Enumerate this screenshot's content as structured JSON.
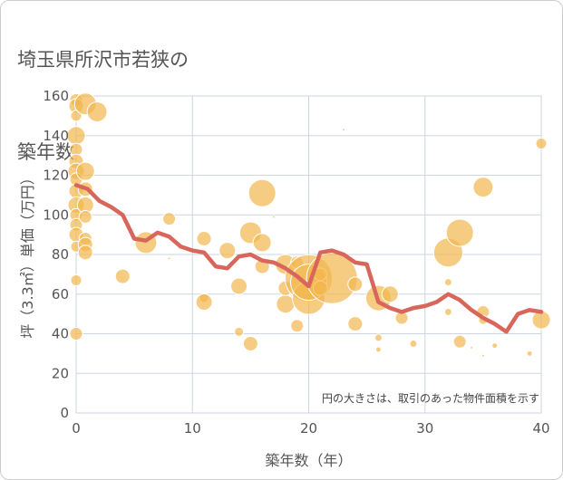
{
  "chart_data": {
    "type": "scatter",
    "title_lines": [
      "埼玉県所沢市若狭の",
      "築年数別中古戸建て価格"
    ],
    "xlabel": "築年数（年）",
    "ylabel": "坪（3.3㎡）単価（万円）",
    "xlim": [
      0,
      40
    ],
    "ylim": [
      0,
      160
    ],
    "xticks": [
      0,
      10,
      20,
      30,
      40
    ],
    "yticks": [
      0,
      20,
      40,
      60,
      80,
      100,
      120,
      140,
      160
    ],
    "grid": true,
    "annotation": "円の大きさは、取引のあった物件面積を示す",
    "colors": {
      "bubble": "#f2b64d",
      "line": "#d9665a",
      "grid": "#cdd6e0"
    },
    "bubbles": [
      {
        "x": 0,
        "y": 158,
        "r": 7
      },
      {
        "x": 0,
        "y": 155,
        "r": 8
      },
      {
        "x": 0,
        "y": 150,
        "r": 6
      },
      {
        "x": 0,
        "y": 140,
        "r": 10
      },
      {
        "x": 0,
        "y": 133,
        "r": 7
      },
      {
        "x": 0,
        "y": 127,
        "r": 8
      },
      {
        "x": 0,
        "y": 122,
        "r": 9
      },
      {
        "x": 0,
        "y": 118,
        "r": 7
      },
      {
        "x": 0,
        "y": 112,
        "r": 8
      },
      {
        "x": 0,
        "y": 105,
        "r": 9
      },
      {
        "x": 0,
        "y": 100,
        "r": 7
      },
      {
        "x": 0,
        "y": 95,
        "r": 7
      },
      {
        "x": 0,
        "y": 90,
        "r": 8
      },
      {
        "x": 0,
        "y": 84,
        "r": 6
      },
      {
        "x": 0,
        "y": 67,
        "r": 6
      },
      {
        "x": 0,
        "y": 40,
        "r": 7
      },
      {
        "x": 0.8,
        "y": 156,
        "r": 12
      },
      {
        "x": 0.8,
        "y": 122,
        "r": 10
      },
      {
        "x": 0.8,
        "y": 113,
        "r": 8
      },
      {
        "x": 0.8,
        "y": 105,
        "r": 9
      },
      {
        "x": 0.8,
        "y": 99,
        "r": 7
      },
      {
        "x": 0.8,
        "y": 88,
        "r": 7
      },
      {
        "x": 0.8,
        "y": 85,
        "r": 8
      },
      {
        "x": 0.8,
        "y": 81,
        "r": 8
      },
      {
        "x": 1.8,
        "y": 152,
        "r": 11
      },
      {
        "x": 4,
        "y": 69,
        "r": 8
      },
      {
        "x": 6,
        "y": 86,
        "r": 12
      },
      {
        "x": 8,
        "y": 98,
        "r": 7
      },
      {
        "x": 8,
        "y": 78,
        "r": 1.5
      },
      {
        "x": 11,
        "y": 88,
        "r": 8
      },
      {
        "x": 11,
        "y": 58,
        "r": 5
      },
      {
        "x": 11,
        "y": 56,
        "r": 9
      },
      {
        "x": 13,
        "y": 82,
        "r": 9
      },
      {
        "x": 14,
        "y": 64,
        "r": 9
      },
      {
        "x": 14,
        "y": 41,
        "r": 5
      },
      {
        "x": 15,
        "y": 91,
        "r": 12
      },
      {
        "x": 15,
        "y": 35,
        "r": 8
      },
      {
        "x": 16,
        "y": 111,
        "r": 15
      },
      {
        "x": 16,
        "y": 86,
        "r": 10
      },
      {
        "x": 16,
        "y": 74,
        "r": 8
      },
      {
        "x": 17,
        "y": 99,
        "r": 1.5
      },
      {
        "x": 18,
        "y": 75,
        "r": 11
      },
      {
        "x": 18,
        "y": 55,
        "r": 10
      },
      {
        "x": 18,
        "y": 63,
        "r": 8
      },
      {
        "x": 19,
        "y": 76,
        "r": 7
      },
      {
        "x": 19,
        "y": 44,
        "r": 7
      },
      {
        "x": 20,
        "y": 68,
        "r": 26
      },
      {
        "x": 20,
        "y": 58,
        "r": 18
      },
      {
        "x": 20,
        "y": 66,
        "r": 20
      },
      {
        "x": 21,
        "y": 63,
        "r": 8
      },
      {
        "x": 21,
        "y": 70,
        "r": 7
      },
      {
        "x": 22,
        "y": 68,
        "r": 28
      },
      {
        "x": 23,
        "y": 143,
        "r": 1.5
      },
      {
        "x": 24,
        "y": 65,
        "r": 8
      },
      {
        "x": 24,
        "y": 45,
        "r": 8
      },
      {
        "x": 26,
        "y": 58,
        "r": 14
      },
      {
        "x": 26,
        "y": 38,
        "r": 4
      },
      {
        "x": 26,
        "y": 32,
        "r": 3
      },
      {
        "x": 27,
        "y": 60,
        "r": 9
      },
      {
        "x": 28,
        "y": 48,
        "r": 7
      },
      {
        "x": 29,
        "y": 35,
        "r": 4
      },
      {
        "x": 32,
        "y": 81,
        "r": 16
      },
      {
        "x": 32,
        "y": 66,
        "r": 4
      },
      {
        "x": 32,
        "y": 51,
        "r": 4
      },
      {
        "x": 33,
        "y": 91,
        "r": 15
      },
      {
        "x": 33,
        "y": 36,
        "r": 7
      },
      {
        "x": 34,
        "y": 33,
        "r": 1.5
      },
      {
        "x": 35,
        "y": 114,
        "r": 11
      },
      {
        "x": 35,
        "y": 51,
        "r": 7
      },
      {
        "x": 35,
        "y": 47,
        "r": 5
      },
      {
        "x": 35,
        "y": 29,
        "r": 1.5
      },
      {
        "x": 36,
        "y": 34,
        "r": 3
      },
      {
        "x": 39,
        "y": 30,
        "r": 3
      },
      {
        "x": 40,
        "y": 136,
        "r": 6
      },
      {
        "x": 40,
        "y": 47,
        "r": 10
      }
    ],
    "trend": {
      "x": [
        0,
        1,
        2,
        3,
        4,
        5,
        6,
        7,
        8,
        9,
        10,
        11,
        12,
        13,
        14,
        15,
        16,
        17,
        18,
        19,
        20,
        21,
        22,
        23,
        24,
        25,
        26,
        27,
        28,
        29,
        30,
        31,
        32,
        33,
        34,
        35,
        36,
        37,
        38,
        39,
        40
      ],
      "y": [
        115,
        113,
        107,
        104,
        100,
        88,
        87,
        91,
        89,
        84,
        82,
        81,
        74,
        73,
        79,
        80,
        77,
        76,
        73,
        69,
        64,
        81,
        82,
        80,
        76,
        75,
        56,
        53,
        51,
        53,
        54,
        56,
        60,
        57,
        52,
        48,
        45,
        41,
        50,
        52,
        51
      ]
    }
  }
}
